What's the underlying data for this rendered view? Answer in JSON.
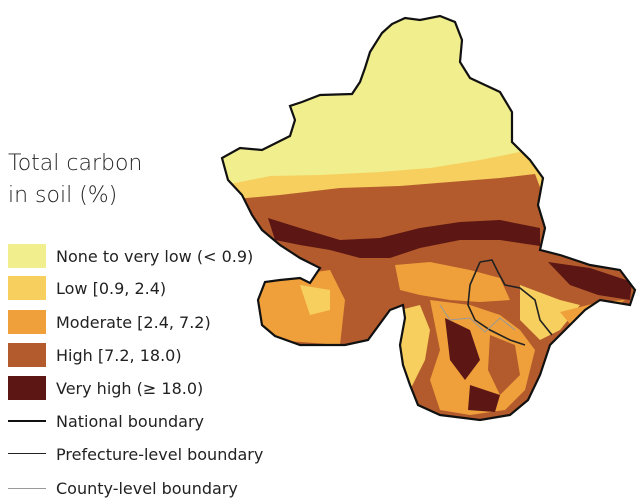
{
  "legend": {
    "title_line1": "Total carbon",
    "title_line2": "in soil (%)",
    "classes": [
      {
        "label": "None to very low (< 0.9)",
        "color": "#f1ee8e"
      },
      {
        "label": "Low [0.9, 2.4)",
        "color": "#f6cf5f"
      },
      {
        "label": "Moderate [2.4, 7.2)",
        "color": "#efa03b"
      },
      {
        "label": "High [7.2, 18.0)",
        "color": "#b35b2c"
      },
      {
        "label": "Very high (≥ 18.0)",
        "color": "#5c1714"
      }
    ],
    "boundaries": [
      {
        "label": "National boundary",
        "style": "national"
      },
      {
        "label": "Prefecture-level boundary",
        "style": "prefecture"
      },
      {
        "label": "County-level boundary",
        "style": "county"
      }
    ]
  }
}
